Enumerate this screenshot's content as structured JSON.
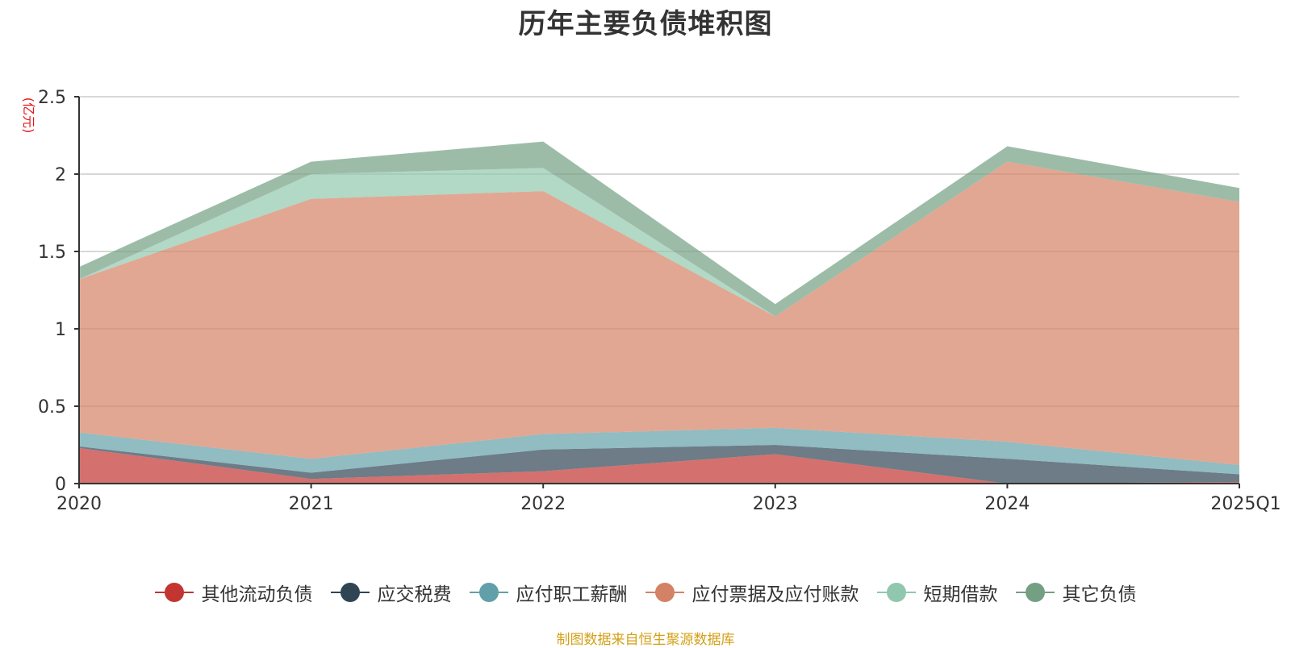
{
  "chart_data": {
    "type": "area",
    "stacked": true,
    "title": "历年主要负债堆积图",
    "ylabel": "(亿元)",
    "xlabel": "",
    "categories": [
      "2020",
      "2021",
      "2022",
      "2023",
      "2024",
      "2025Q1"
    ],
    "ylim": [
      0,
      2.5
    ],
    "yticks": [
      0,
      0.5,
      1,
      1.5,
      2,
      2.5
    ],
    "ytick_labels": [
      "0",
      "0.5",
      "1",
      "1.5",
      "2",
      "2.5"
    ],
    "grid": true,
    "legend_position": "bottom",
    "series": [
      {
        "name": "其他流动负债",
        "color": "#c23531",
        "values": [
          0.23,
          0.03,
          0.08,
          0.19,
          0.0,
          0.01
        ]
      },
      {
        "name": "应交税费",
        "color": "#2f4554",
        "values": [
          0.01,
          0.04,
          0.14,
          0.06,
          0.16,
          0.05
        ]
      },
      {
        "name": "应付职工薪酬",
        "color": "#61a0a8",
        "values": [
          0.09,
          0.09,
          0.1,
          0.11,
          0.11,
          0.06
        ]
      },
      {
        "name": "应付票据及应付账款",
        "color": "#d48265",
        "values": [
          0.99,
          1.68,
          1.57,
          0.72,
          1.81,
          1.7
        ]
      },
      {
        "name": "短期借款",
        "color": "#91c7ae",
        "values": [
          0.0,
          0.16,
          0.15,
          0.0,
          0.0,
          0.0
        ]
      },
      {
        "name": "其它负债",
        "color": "#749f83",
        "values": [
          0.08,
          0.08,
          0.17,
          0.08,
          0.1,
          0.09
        ]
      }
    ],
    "source_note": "制图数据来自恒生聚源数据库"
  }
}
